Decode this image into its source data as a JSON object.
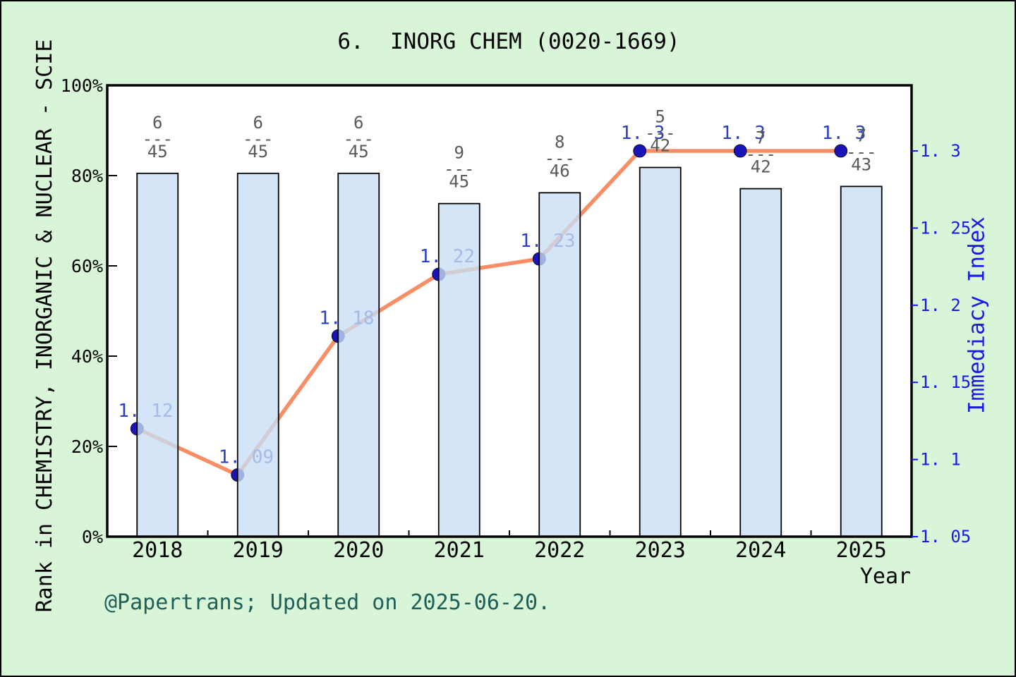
{
  "title": "6.  INORG CHEM (0020-1669)",
  "footer": {
    "text": "@Papertrans; Updated on 2025-06-20."
  },
  "colors": {
    "background": "#d8f5d8",
    "plot_background": "#ffffff",
    "frame_stroke": "#000000",
    "bar_fill": "#c6def4",
    "bar_fill_opacity": 0.78,
    "bar_stroke": "#000000",
    "line": "#f88e66",
    "dot": "#1a14b8",
    "point_label": "#2a3fc4",
    "fraction_label": "#595959",
    "left_tick_label": "#000000",
    "right_axis_blue": "#1a1ae6",
    "footer_text": "#1e6057"
  },
  "left_axis": {
    "label": "Rank in CHEMISTRY, INORGANIC & NUCLEAR - SCIE",
    "tick_labels": [
      "0%",
      "20%",
      "40%",
      "60%",
      "80%",
      "100%"
    ],
    "tick_values": [
      0,
      20,
      40,
      60,
      80,
      100
    ],
    "range": [
      0,
      100
    ]
  },
  "right_axis": {
    "label": "Immediacy Index",
    "tick_labels": [
      "1. 05",
      "1. 1",
      "1. 15",
      "1. 2",
      "1. 25",
      "1. 3"
    ],
    "tick_values": [
      1.05,
      1.1,
      1.15,
      1.2,
      1.25,
      1.3
    ]
  },
  "x_axis": {
    "label": "Year",
    "categories": [
      "2018",
      "2019",
      "2020",
      "2021",
      "2022",
      "2023",
      "2024",
      "2025"
    ]
  },
  "chart_data": {
    "type": "bar+line",
    "title": "6.  INORG CHEM (0020-1669)",
    "categories": [
      2018,
      2019,
      2020,
      2021,
      2022,
      2023,
      2024,
      2025
    ],
    "grid": false,
    "legend": false,
    "left_ylim": [
      0,
      100
    ],
    "right_axis_bottom_value": 1.05,
    "right_axis_px_per_unit_note": "1.05 aligns with 0%, 1.30 aligns with ~85.5%",
    "series": [
      {
        "name": "Rank in category (bar, left axis)",
        "type": "bar",
        "axis": "left",
        "values_percent": [
          80.5,
          80.5,
          80.5,
          73.8,
          76.2,
          81.8,
          77.1,
          77.6
        ],
        "fraction_dash": "---",
        "fractions": [
          {
            "numerator": "6",
            "denominator": "45"
          },
          {
            "numerator": "6",
            "denominator": "45"
          },
          {
            "numerator": "6",
            "denominator": "45"
          },
          {
            "numerator": "9",
            "denominator": "45"
          },
          {
            "numerator": "8",
            "denominator": "46"
          },
          {
            "numerator": "5",
            "denominator": "42"
          },
          {
            "numerator": "7",
            "denominator": "42"
          },
          {
            "numerator": "7",
            "denominator": "43"
          }
        ]
      },
      {
        "name": "Immediacy Index (line, right axis)",
        "type": "line",
        "axis": "right",
        "values": [
          1.12,
          1.09,
          1.18,
          1.22,
          1.23,
          1.3,
          1.3,
          1.3
        ],
        "point_labels": [
          "1. 12",
          "1. 09",
          "1. 18",
          "1. 22",
          "1. 23",
          "1. 3",
          "1. 3",
          "1. 3"
        ]
      }
    ]
  }
}
